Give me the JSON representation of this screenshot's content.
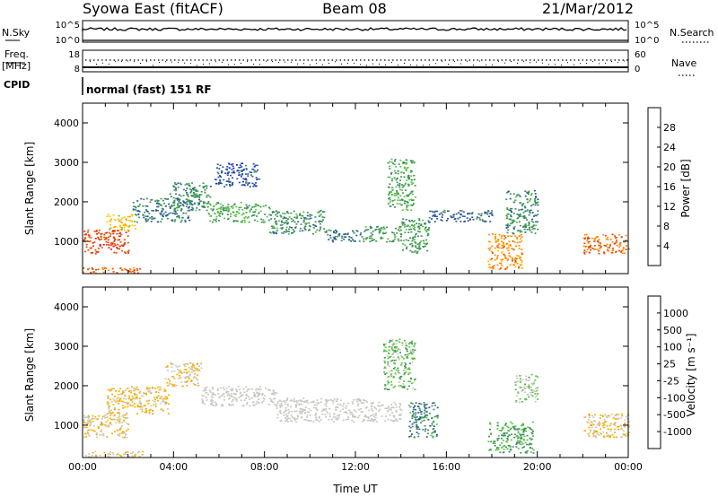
{
  "header": {
    "station": "Syowa East (fitACF)",
    "beam": "Beam 08",
    "date": "21/Mar/2012"
  },
  "top_panels": {
    "nsky_label": "N.Sky",
    "nsky_ticks": [
      "10^5",
      "10^0"
    ],
    "nsearch_label": "N.Search",
    "nsearch_ticks": [
      "10^5",
      "10^0"
    ],
    "freq_label": "Freq.",
    "freq_unit": "[MHz]",
    "freq_ticks": [
      "18",
      "8"
    ],
    "nave_label": "Nave",
    "nave_ticks": [
      "60",
      "0"
    ],
    "cpid_label": "CPID",
    "cpid_text": "normal (fast) 151 RF"
  },
  "colors": {
    "power_scale": [
      "#1a1ae6",
      "#2b4fa8",
      "#3c8f5a",
      "#56c241",
      "#ffc200",
      "#ff8c00",
      "#e64a00",
      "#e61a1a"
    ],
    "velocity_scale": [
      "#e61a1a",
      "#e64a00",
      "#ff8c00",
      "#f5b000",
      "#c8c8c0",
      "#c8c8c0",
      "#56c241",
      "#3c8f5a",
      "#2b4fa8",
      "#1a3ac8"
    ]
  },
  "chart_data": [
    {
      "type": "heatmap",
      "panel": "power",
      "ylabel": "Slant Range [km]",
      "yticks": [
        "1000",
        "2000",
        "3000",
        "4000"
      ],
      "ylim": [
        180,
        4500
      ],
      "xlim": [
        0,
        24
      ],
      "colorbar_label": "Power [dB]",
      "colorbar_ticks": [
        "4",
        "8",
        "12",
        "16",
        "20",
        "24",
        "28"
      ],
      "colorbar_range": [
        0,
        32
      ],
      "regions": [
        {
          "t0": 0.0,
          "t1": 2.0,
          "r0": 700,
          "r1": 1300,
          "value": 27
        },
        {
          "t0": 0.0,
          "t1": 2.6,
          "r0": 200,
          "r1": 350,
          "value": 25
        },
        {
          "t0": 1.0,
          "t1": 2.3,
          "r0": 1300,
          "r1": 1700,
          "value": 18
        },
        {
          "t0": 2.2,
          "t1": 4.8,
          "r0": 1500,
          "r1": 2100,
          "value": 9
        },
        {
          "t0": 3.8,
          "t1": 5.6,
          "r0": 1800,
          "r1": 2500,
          "value": 10
        },
        {
          "t0": 5.5,
          "t1": 8.2,
          "r0": 1500,
          "r1": 2000,
          "value": 12
        },
        {
          "t0": 5.8,
          "t1": 7.8,
          "r0": 2400,
          "r1": 3000,
          "value": 6
        },
        {
          "t0": 8.2,
          "t1": 10.6,
          "r0": 1200,
          "r1": 1800,
          "value": 10
        },
        {
          "t0": 10.6,
          "t1": 12.3,
          "r0": 1000,
          "r1": 1300,
          "value": 8
        },
        {
          "t0": 12.3,
          "t1": 14.0,
          "r0": 1000,
          "r1": 1400,
          "value": 11
        },
        {
          "t0": 13.4,
          "t1": 14.6,
          "r0": 1800,
          "r1": 3100,
          "value": 12
        },
        {
          "t0": 14.0,
          "t1": 15.2,
          "r0": 700,
          "r1": 1600,
          "value": 11
        },
        {
          "t0": 15.2,
          "t1": 18.0,
          "r0": 1500,
          "r1": 1800,
          "value": 7
        },
        {
          "t0": 17.8,
          "t1": 19.3,
          "r0": 300,
          "r1": 1200,
          "value": 22
        },
        {
          "t0": 18.6,
          "t1": 20.0,
          "r0": 1200,
          "r1": 2300,
          "value": 10
        },
        {
          "t0": 22.0,
          "t1": 24.0,
          "r0": 700,
          "r1": 1200,
          "value": 24
        }
      ]
    },
    {
      "type": "heatmap",
      "panel": "velocity",
      "ylabel": "Slant Range [km]",
      "yticks": [
        "1000",
        "2000",
        "3000",
        "4000"
      ],
      "ylim": [
        180,
        4500
      ],
      "xlim": [
        0,
        24
      ],
      "xlabel": "Time UT",
      "xticks": [
        "00:00",
        "04:00",
        "08:00",
        "12:00",
        "16:00",
        "20:00",
        "00:00"
      ],
      "colorbar_label": "Velocity [m s⁻¹]",
      "colorbar_ticks": [
        "-1000",
        "-500",
        "-100",
        "-25",
        "25",
        "100",
        "500",
        "1000"
      ],
      "colorbar_range": [
        -1300,
        1300
      ],
      "regions": [
        {
          "t0": 0.0,
          "t1": 2.0,
          "r0": 700,
          "r1": 1300,
          "value": -300
        },
        {
          "t0": 0.0,
          "t1": 2.6,
          "r0": 200,
          "r1": 350,
          "value": -200
        },
        {
          "t0": 1.0,
          "t1": 3.8,
          "r0": 1300,
          "r1": 2000,
          "value": -300
        },
        {
          "t0": 3.6,
          "t1": 5.2,
          "r0": 2000,
          "r1": 2600,
          "value": -250
        },
        {
          "t0": 5.2,
          "t1": 8.5,
          "r0": 1500,
          "r1": 2000,
          "value": 0
        },
        {
          "t0": 8.5,
          "t1": 12.5,
          "r0": 1100,
          "r1": 1700,
          "value": 0
        },
        {
          "t0": 12.5,
          "t1": 14.0,
          "r0": 1100,
          "r1": 1600,
          "value": 0
        },
        {
          "t0": 13.2,
          "t1": 14.6,
          "r0": 1900,
          "r1": 3200,
          "value": 400
        },
        {
          "t0": 14.3,
          "t1": 15.6,
          "r0": 700,
          "r1": 1600,
          "value": 700
        },
        {
          "t0": 17.8,
          "t1": 19.8,
          "r0": 300,
          "r1": 1100,
          "value": 500
        },
        {
          "t0": 19.0,
          "t1": 20.0,
          "r0": 1600,
          "r1": 2300,
          "value": 300
        },
        {
          "t0": 22.0,
          "t1": 24.0,
          "r0": 700,
          "r1": 1300,
          "value": -300
        }
      ]
    }
  ]
}
